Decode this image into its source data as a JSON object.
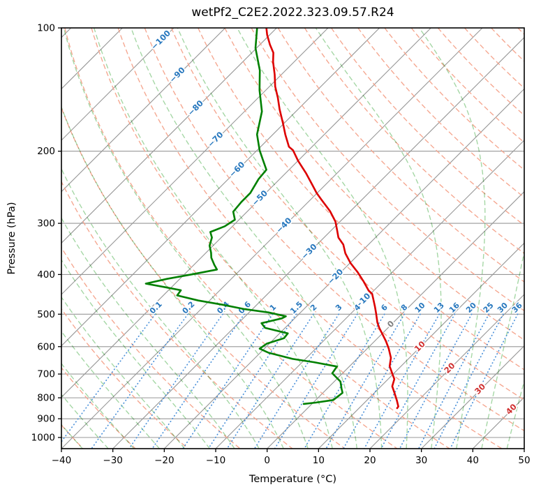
{
  "title": "wetPf2_C2E2.2022.323.09.57.R24",
  "chart_data": {
    "type": "line",
    "chart_kind": "skew-t-log-p",
    "title": "wetPf2_C2E2.2022.323.09.57.R24",
    "xlabel": "Temperature (°C)",
    "ylabel": "Pressure (hPa)",
    "xlim": [
      -40,
      50
    ],
    "x_ticks": [
      -40,
      -30,
      -20,
      -10,
      0,
      10,
      20,
      30,
      40,
      50
    ],
    "pressure_ticks": [
      100,
      200,
      300,
      400,
      500,
      600,
      700,
      800,
      900,
      1000
    ],
    "pressure_top": 100,
    "skew": "45deg-isotherms",
    "grid": true,
    "legend": "none",
    "isotherms": {
      "start": -120,
      "end": 50,
      "step": 10
    },
    "isotherm_labels": [
      -100,
      -90,
      -80,
      -70,
      -60,
      -50,
      -40,
      -30,
      -20,
      -10,
      0,
      10,
      20,
      30,
      40
    ],
    "dry_adiabats_theta_c": {
      "start": -40,
      "end": 190,
      "step": 10
    },
    "moist_adiabats_thetaw_c": {
      "start": -60,
      "end": 45,
      "step": 5
    },
    "mixing_ratio_g_kg": [
      0.1,
      0.2,
      0.4,
      0.6,
      1,
      1.5,
      2,
      3,
      4,
      6,
      8,
      10,
      13,
      16,
      20,
      25,
      30,
      36
    ],
    "mixing_ratio_top_pressure": 500,
    "series": [
      {
        "name": "temperature",
        "color": "#dd0000",
        "points": [
          [
            100,
            -82.0
          ],
          [
            104,
            -80.5
          ],
          [
            110,
            -78.0
          ],
          [
            115,
            -75.8
          ],
          [
            121,
            -74.1
          ],
          [
            130,
            -71.3
          ],
          [
            139,
            -68.9
          ],
          [
            148,
            -66.2
          ],
          [
            158,
            -63.6
          ],
          [
            171,
            -60.2
          ],
          [
            182,
            -57.6
          ],
          [
            195,
            -54.5
          ],
          [
            199,
            -53.0
          ],
          [
            211,
            -50.0
          ],
          [
            226,
            -46.1
          ],
          [
            240,
            -42.9
          ],
          [
            253,
            -40.1
          ],
          [
            263,
            -37.8
          ],
          [
            280,
            -34.0
          ],
          [
            297,
            -30.9
          ],
          [
            311,
            -29.0
          ],
          [
            325,
            -27.2
          ],
          [
            338,
            -24.9
          ],
          [
            355,
            -22.8
          ],
          [
            375,
            -19.9
          ],
          [
            395,
            -16.7
          ],
          [
            415,
            -13.9
          ],
          [
            438,
            -11.0
          ],
          [
            446,
            -9.7
          ],
          [
            462,
            -8.2
          ],
          [
            480,
            -6.6
          ],
          [
            498,
            -5.1
          ],
          [
            524,
            -3.1
          ],
          [
            541,
            -1.6
          ],
          [
            560,
            0.2
          ],
          [
            582,
            2.2
          ],
          [
            607,
            4.2
          ],
          [
            639,
            6.4
          ],
          [
            670,
            7.8
          ],
          [
            705,
            10.2
          ],
          [
            720,
            11.2
          ],
          [
            750,
            12.2
          ],
          [
            783,
            14.2
          ],
          [
            813,
            15.9
          ],
          [
            840,
            17.3
          ],
          [
            848,
            17.4
          ]
        ]
      },
      {
        "name": "dewpoint",
        "color": "#008000",
        "points": [
          [
            100,
            -83.8
          ],
          [
            112,
            -80.2
          ],
          [
            127,
            -75.0
          ],
          [
            142,
            -71.2
          ],
          [
            160,
            -66.6
          ],
          [
            182,
            -63.1
          ],
          [
            199,
            -59.5
          ],
          [
            210,
            -57.0
          ],
          [
            222,
            -54.4
          ],
          [
            234,
            -54.1
          ],
          [
            253,
            -53.0
          ],
          [
            266,
            -53.0
          ],
          [
            281,
            -52.7
          ],
          [
            294,
            -50.8
          ],
          [
            305,
            -51.5
          ],
          [
            315,
            -53.2
          ],
          [
            325,
            -51.8
          ],
          [
            340,
            -50.7
          ],
          [
            354,
            -49.0
          ],
          [
            364,
            -48.0
          ],
          [
            379,
            -46.0
          ],
          [
            389,
            -44.6
          ],
          [
            399,
            -48.3
          ],
          [
            410,
            -52.5
          ],
          [
            421,
            -55.7
          ],
          [
            429,
            -51.5
          ],
          [
            437,
            -47.6
          ],
          [
            450,
            -47.3
          ],
          [
            463,
            -42.2
          ],
          [
            474,
            -36.7
          ],
          [
            486,
            -31.5
          ],
          [
            495,
            -26.3
          ],
          [
            506,
            -22.1
          ],
          [
            512,
            -22.5
          ],
          [
            526,
            -25.5
          ],
          [
            540,
            -23.9
          ],
          [
            557,
            -18.4
          ],
          [
            572,
            -18.2
          ],
          [
            590,
            -20.5
          ],
          [
            607,
            -20.9
          ],
          [
            621,
            -18.4
          ],
          [
            643,
            -12.5
          ],
          [
            655,
            -7.7
          ],
          [
            671,
            -2.4
          ],
          [
            697,
            -2.0
          ],
          [
            730,
            1.2
          ],
          [
            760,
            2.8
          ],
          [
            778,
            3.8
          ],
          [
            810,
            3.4
          ],
          [
            822,
            0.5
          ],
          [
            828,
            -1.6
          ]
        ]
      }
    ],
    "colors": {
      "temperature_line": "#dd0000",
      "dewpoint_line": "#008000",
      "isotherm": "#979797",
      "pressure_grid": "#979797",
      "dry_adiabat": "#f5a68f",
      "moist_adiabat": "#a3d6a3",
      "mixing_ratio": "#4a90d9",
      "label_negative": "#2878be",
      "label_zero": "#7f7f7f",
      "label_positive": "#d03030",
      "frame": "#000000",
      "tick_text": "#000000"
    }
  }
}
